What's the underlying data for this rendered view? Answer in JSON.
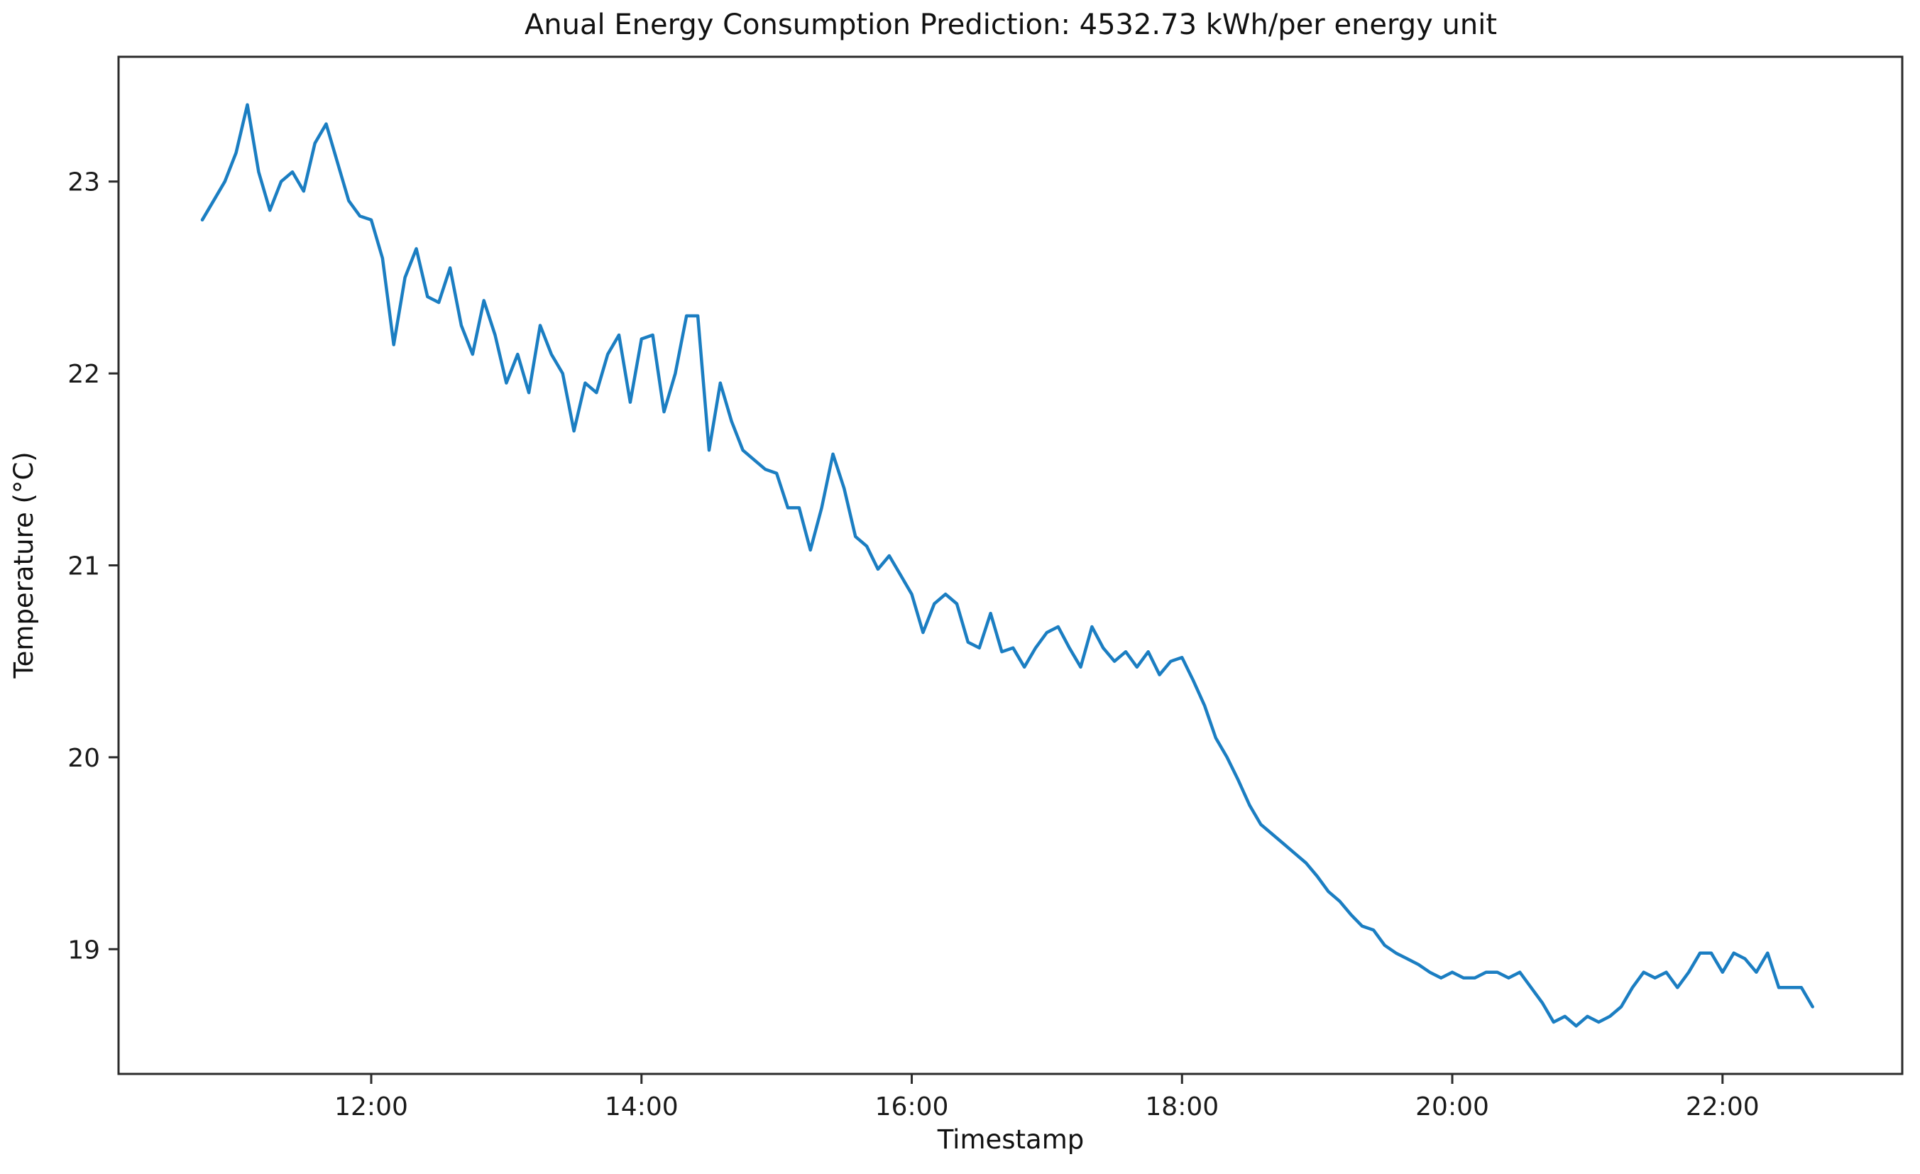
{
  "figure": {
    "background": "#ffffff"
  },
  "chart_data": {
    "type": "line",
    "title": "Anual Energy Consumption Prediction: 4532.73 kWh/per energy unit",
    "xlabel": "Timestamp",
    "ylabel": "Temperature (°C)",
    "series_name": "Temperature",
    "line_color": "#1b7ec2",
    "axis_color": "#2b2b2b",
    "grid": false,
    "legend": "none",
    "xticks": [
      "12:00",
      "14:00",
      "16:00",
      "18:00",
      "20:00",
      "22:00"
    ],
    "yticks": [
      19,
      20,
      21,
      22,
      23
    ],
    "xlim_hours": [
      10.13,
      23.33
    ],
    "ylim": [
      18.35,
      23.65
    ],
    "x_times": [
      "10:45",
      "10:50",
      "10:55",
      "11:00",
      "11:05",
      "11:10",
      "11:15",
      "11:20",
      "11:25",
      "11:30",
      "11:35",
      "11:40",
      "11:45",
      "11:50",
      "11:55",
      "12:00",
      "12:05",
      "12:10",
      "12:15",
      "12:20",
      "12:25",
      "12:30",
      "12:35",
      "12:40",
      "12:45",
      "12:50",
      "12:55",
      "13:00",
      "13:05",
      "13:10",
      "13:15",
      "13:20",
      "13:25",
      "13:30",
      "13:35",
      "13:40",
      "13:45",
      "13:50",
      "13:55",
      "14:00",
      "14:05",
      "14:10",
      "14:15",
      "14:20",
      "14:25",
      "14:30",
      "14:35",
      "14:40",
      "14:45",
      "14:50",
      "14:55",
      "15:00",
      "15:05",
      "15:10",
      "15:15",
      "15:20",
      "15:25",
      "15:30",
      "15:35",
      "15:40",
      "15:45",
      "15:50",
      "15:55",
      "16:00",
      "16:05",
      "16:10",
      "16:15",
      "16:20",
      "16:25",
      "16:30",
      "16:35",
      "16:40",
      "16:45",
      "16:50",
      "16:55",
      "17:00",
      "17:05",
      "17:10",
      "17:15",
      "17:20",
      "17:25",
      "17:30",
      "17:35",
      "17:40",
      "17:45",
      "17:50",
      "17:55",
      "18:00",
      "18:05",
      "18:10",
      "18:15",
      "18:20",
      "18:25",
      "18:30",
      "18:35",
      "18:40",
      "18:45",
      "18:50",
      "18:55",
      "19:00",
      "19:05",
      "19:10",
      "19:15",
      "19:20",
      "19:25",
      "19:30",
      "19:35",
      "19:40",
      "19:45",
      "19:50",
      "19:55",
      "20:00",
      "20:05",
      "20:10",
      "20:15",
      "20:20",
      "20:25",
      "20:30",
      "20:35",
      "20:40",
      "20:45",
      "20:50",
      "20:55",
      "21:00",
      "21:05",
      "21:10",
      "21:15",
      "21:20",
      "21:25",
      "21:30",
      "21:35",
      "21:40",
      "21:45",
      "21:50",
      "21:55",
      "22:00",
      "22:05",
      "22:10",
      "22:15",
      "22:20",
      "22:25",
      "22:30",
      "22:35",
      "22:40"
    ],
    "temperatures": [
      22.8,
      22.9,
      23.0,
      23.15,
      23.4,
      23.05,
      22.85,
      23.0,
      23.05,
      22.95,
      23.2,
      23.3,
      23.1,
      22.9,
      22.82,
      22.8,
      22.6,
      22.15,
      22.5,
      22.65,
      22.4,
      22.37,
      22.55,
      22.25,
      22.1,
      22.38,
      22.2,
      21.95,
      22.1,
      21.9,
      22.25,
      22.1,
      22.0,
      21.7,
      21.95,
      21.9,
      22.1,
      22.2,
      21.85,
      22.18,
      22.2,
      21.8,
      22.0,
      22.3,
      22.3,
      21.6,
      21.95,
      21.75,
      21.6,
      21.55,
      21.5,
      21.48,
      21.3,
      21.3,
      21.08,
      21.3,
      21.58,
      21.4,
      21.15,
      21.1,
      20.98,
      21.05,
      20.95,
      20.85,
      20.65,
      20.8,
      20.85,
      20.8,
      20.6,
      20.57,
      20.75,
      20.55,
      20.57,
      20.47,
      20.57,
      20.65,
      20.68,
      20.57,
      20.47,
      20.68,
      20.57,
      20.5,
      20.55,
      20.47,
      20.55,
      20.43,
      20.5,
      20.52,
      20.4,
      20.27,
      20.1,
      20.0,
      19.88,
      19.75,
      19.65,
      19.6,
      19.55,
      19.5,
      19.45,
      19.38,
      19.3,
      19.25,
      19.18,
      19.12,
      19.1,
      19.02,
      18.98,
      18.95,
      18.92,
      18.88,
      18.85,
      18.88,
      18.85,
      18.85,
      18.88,
      18.88,
      18.85,
      18.88,
      18.8,
      18.72,
      18.62,
      18.65,
      18.6,
      18.65,
      18.62,
      18.65,
      18.7,
      18.8,
      18.88,
      18.85,
      18.88,
      18.8,
      18.88,
      18.98,
      18.98,
      18.88,
      18.98,
      18.95,
      18.88,
      18.98,
      18.8,
      18.8,
      18.8,
      18.7
    ]
  }
}
